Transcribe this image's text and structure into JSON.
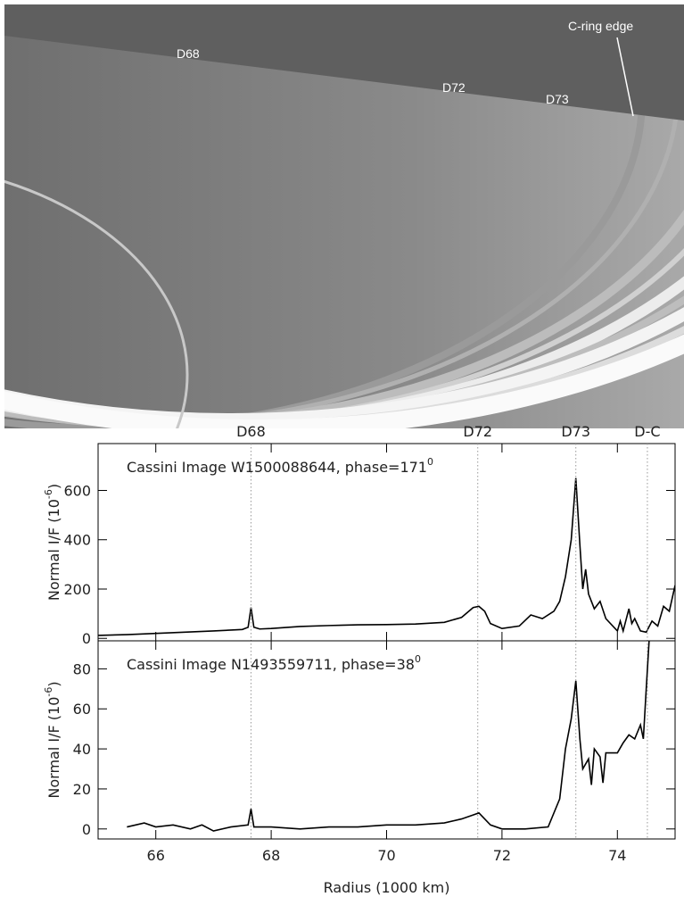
{
  "image": {
    "labels": [
      "D68",
      "D72",
      "D73",
      "C-ring edge"
    ]
  },
  "chart_data": [
    {
      "type": "line",
      "title": {
        "text": "Cassini Image W1500088644, phase=171",
        "superscript": "0"
      },
      "ylabel": {
        "text": "Normal I/F (10",
        "superscript": "-6",
        "suffix": ")"
      },
      "annotations": [
        {
          "label": "D68",
          "x": 67.65
        },
        {
          "label": "D72",
          "x": 71.58
        },
        {
          "label": "D73",
          "x": 73.28
        },
        {
          "label": "D-C",
          "x": 74.52
        }
      ],
      "xlim": [
        65,
        75
      ],
      "xticks": [
        66,
        68,
        70,
        72,
        74
      ],
      "ylim": [
        -10,
        790
      ],
      "yticks": [
        0,
        200,
        400,
        600
      ],
      "color": "#000000",
      "x": [
        65.0,
        65.5,
        66.0,
        66.5,
        67.0,
        67.5,
        67.6,
        67.65,
        67.7,
        67.8,
        68.0,
        68.5,
        69.0,
        69.5,
        70.0,
        70.5,
        71.0,
        71.3,
        71.5,
        71.6,
        71.7,
        71.8,
        72.0,
        72.3,
        72.5,
        72.7,
        72.9,
        73.0,
        73.1,
        73.2,
        73.28,
        73.35,
        73.4,
        73.45,
        73.5,
        73.6,
        73.7,
        73.8,
        74.0,
        74.05,
        74.1,
        74.2,
        74.25,
        74.3,
        74.4,
        74.5,
        74.6,
        74.7,
        74.8,
        74.9,
        75.0
      ],
      "values": [
        12,
        15,
        20,
        25,
        30,
        36,
        45,
        125,
        45,
        38,
        40,
        48,
        52,
        55,
        56,
        58,
        65,
        85,
        125,
        130,
        110,
        60,
        40,
        50,
        95,
        80,
        110,
        150,
        250,
        400,
        650,
        380,
        200,
        280,
        180,
        120,
        150,
        80,
        30,
        70,
        30,
        120,
        60,
        80,
        30,
        25,
        70,
        50,
        130,
        110,
        215
      ]
    },
    {
      "type": "line",
      "title": {
        "text": "Cassini Image N1493559711, phase=38",
        "superscript": "0"
      },
      "ylabel": {
        "text": "Normal I/F (10",
        "superscript": "-6",
        "suffix": ")"
      },
      "xlabel": "Radius (1000 km)",
      "xlim": [
        65,
        75
      ],
      "xticks": [
        66,
        68,
        70,
        72,
        74
      ],
      "ylim": [
        -5,
        94
      ],
      "yticks": [
        0,
        20,
        40,
        60,
        80
      ],
      "color": "#000000",
      "x": [
        65.5,
        65.8,
        66.0,
        66.3,
        66.6,
        66.8,
        67.0,
        67.3,
        67.6,
        67.65,
        67.7,
        68.0,
        68.5,
        69.0,
        69.5,
        70.0,
        70.5,
        71.0,
        71.3,
        71.5,
        71.6,
        71.8,
        72.0,
        72.4,
        72.8,
        73.0,
        73.1,
        73.2,
        73.28,
        73.35,
        73.4,
        73.5,
        73.55,
        73.6,
        73.7,
        73.75,
        73.8,
        74.0,
        74.1,
        74.2,
        74.3,
        74.4,
        74.45,
        74.5,
        74.55
      ],
      "values": [
        1,
        3,
        1,
        2,
        0,
        2,
        -1,
        1,
        2,
        10,
        1,
        1,
        0,
        1,
        1,
        2,
        2,
        3,
        5,
        7,
        8,
        2,
        0,
        0,
        1,
        15,
        40,
        55,
        74,
        45,
        30,
        35,
        22,
        40,
        36,
        23,
        38,
        38,
        43,
        47,
        45,
        52,
        45,
        70,
        94
      ]
    }
  ]
}
